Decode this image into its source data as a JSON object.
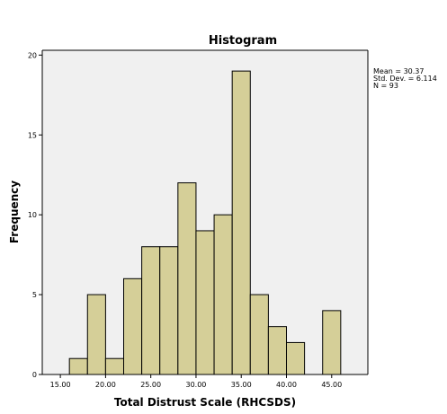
{
  "colors": {
    "bar_fill": "#d5cf98",
    "bar_stroke": "#000000",
    "plot_bg": "#f0f0f0",
    "frame": "#000000"
  },
  "chart_data": {
    "type": "bar",
    "title": "Histogram",
    "xlabel": "Total Distrust Scale (RHCSDS)",
    "ylabel": "Frequency",
    "bin_width": 2.0,
    "bins": [
      {
        "start": 16,
        "end": 18,
        "count": 1
      },
      {
        "start": 18,
        "end": 20,
        "count": 5
      },
      {
        "start": 20,
        "end": 22,
        "count": 1
      },
      {
        "start": 22,
        "end": 24,
        "count": 6
      },
      {
        "start": 24,
        "end": 26,
        "count": 8
      },
      {
        "start": 26,
        "end": 28,
        "count": 8
      },
      {
        "start": 28,
        "end": 30,
        "count": 12
      },
      {
        "start": 30,
        "end": 32,
        "count": 9
      },
      {
        "start": 32,
        "end": 34,
        "count": 10
      },
      {
        "start": 34,
        "end": 36,
        "count": 19
      },
      {
        "start": 36,
        "end": 38,
        "count": 5
      },
      {
        "start": 38,
        "end": 40,
        "count": 3
      },
      {
        "start": 40,
        "end": 42,
        "count": 2
      },
      {
        "start": 44,
        "end": 46,
        "count": 4
      }
    ],
    "xlim": [
      13.0,
      49.0
    ],
    "ylim": [
      0,
      20.3
    ],
    "xticks": [
      {
        "value": 15,
        "label": "15.00"
      },
      {
        "value": 20,
        "label": "20.00"
      },
      {
        "value": 25,
        "label": "25.00"
      },
      {
        "value": 30,
        "label": "30.00"
      },
      {
        "value": 35,
        "label": "35.00"
      },
      {
        "value": 40,
        "label": "40.00"
      },
      {
        "value": 45,
        "label": "45.00"
      }
    ],
    "yticks": [
      {
        "value": 0,
        "label": "0"
      },
      {
        "value": 5,
        "label": "5"
      },
      {
        "value": 10,
        "label": "10"
      },
      {
        "value": 15,
        "label": "15"
      },
      {
        "value": 20,
        "label": "20"
      }
    ],
    "grid": false,
    "legend": "none",
    "stats": [
      "Mean = 30.37",
      "Std. Dev. = 6.114",
      "N = 93"
    ]
  }
}
